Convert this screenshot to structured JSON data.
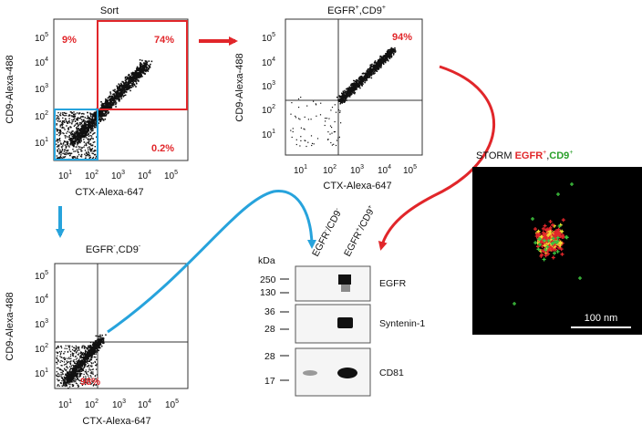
{
  "colors": {
    "red": "#e1262a",
    "blue": "#27a3dc",
    "green": "#3ec23e",
    "yellow": "#f0e030",
    "dots": "#111111"
  },
  "sort_plot": {
    "title": "Sort",
    "xlabel": "CTX-Alexa-647",
    "ylabel": "CD9-Alexa-488",
    "x_ticks": [
      "10",
      "10",
      "10",
      "10",
      "10"
    ],
    "x_tick_exp": [
      "1",
      "2",
      "3",
      "4",
      "5"
    ],
    "y_ticks": [
      "10",
      "10",
      "10",
      "10",
      "10"
    ],
    "y_tick_exp": [
      "1",
      "2",
      "3",
      "4",
      "5"
    ],
    "gate_upper_left": "9%",
    "gate_upper_right": "74%",
    "gate_lower_right": "0.2%"
  },
  "egfr_pos_plot": {
    "title_main": "EGFR",
    "title_sup1": "+",
    "title_mid": ",CD9",
    "title_sup2": "+",
    "xlabel": "CTX-Alexa-647",
    "ylabel": "CD9-Alexa-488",
    "quadrant_upper_right": "94%"
  },
  "egfr_neg_plot": {
    "title_main": "EGFR",
    "title_sup1": "-",
    "title_mid": ",CD9",
    "title_sup2": "-",
    "xlabel": "CTX-Alexa-647",
    "ylabel": "CD9-Alexa-488",
    "quadrant_lower_left": "98%"
  },
  "western_blot": {
    "unit": "kDa",
    "lane_headers": [
      {
        "main": "EGFR",
        "sup1": "-",
        "mid": "/CD9",
        "sup2": "-"
      },
      {
        "main": "EGFR",
        "sup1": "+",
        "mid": "/CD9",
        "sup2": "+"
      }
    ],
    "panels": [
      {
        "label": "EGFR",
        "markers": [
          "250",
          "130"
        ]
      },
      {
        "label": "Syntenin-1",
        "markers": [
          "36",
          "28"
        ]
      },
      {
        "label": "CD81",
        "markers": [
          "28",
          "17"
        ]
      }
    ]
  },
  "storm": {
    "title_prefix": "STORM ",
    "title_egfr": "EGFR",
    "title_sup1": "+",
    "title_comma": ",",
    "title_cd9": "CD9",
    "title_sup2": "+",
    "scale_bar": "100 nm"
  }
}
